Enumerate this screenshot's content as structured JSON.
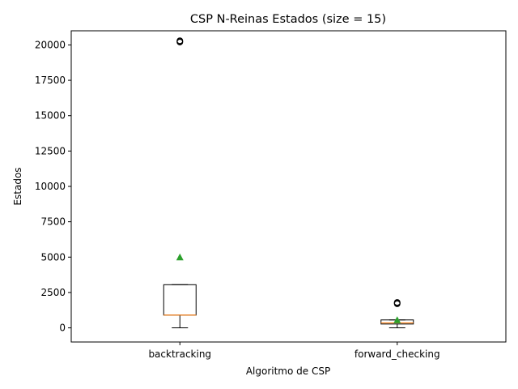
{
  "chart_data": {
    "type": "box",
    "title": "CSP N-Reinas Estados (size = 15)",
    "xlabel": "Algoritmo de CSP",
    "ylabel": "Estados",
    "ylim": [
      -1000,
      21000
    ],
    "yticks": [
      0,
      2500,
      5000,
      7500,
      10000,
      12500,
      15000,
      17500,
      20000
    ],
    "ytick_labels": [
      "0",
      "2500",
      "5000",
      "7500",
      "10000",
      "12500",
      "15000",
      "17500",
      "20000"
    ],
    "categories": [
      "backtracking",
      "forward_checking"
    ],
    "boxes": [
      {
        "category": "backtracking",
        "whisker_low": 0,
        "q1": 900,
        "median": 900,
        "q3": 3050,
        "whisker_high": 3050,
        "mean": 5000,
        "outliers": [
          20200,
          20250,
          20300
        ]
      },
      {
        "category": "forward_checking",
        "whisker_low": 0,
        "q1": 270,
        "median": 350,
        "q3": 560,
        "whisker_high": 560,
        "mean": 560,
        "outliers": [
          1700,
          1750,
          1800
        ]
      }
    ],
    "grid": false,
    "legend": "none",
    "colors": {
      "box": "#000000",
      "median": "#ff7f0e",
      "mean": "#2ca02c",
      "outlier": "#000000"
    }
  }
}
